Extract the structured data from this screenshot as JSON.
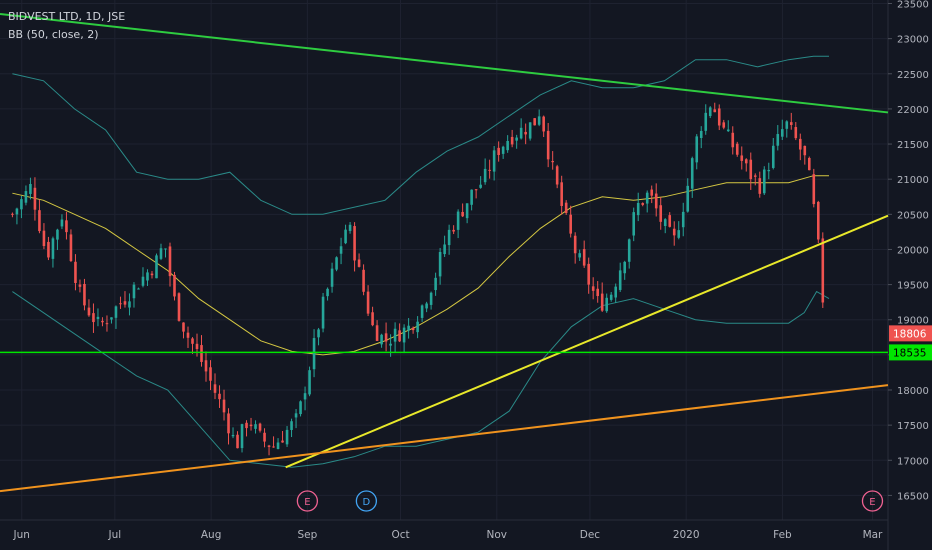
{
  "chart_data": {
    "type": "candlestick",
    "title": "BIDVEST LTD, 1D, JSE",
    "indicator_label": "BB (50, close, 2)",
    "x_ticks": [
      "Jun",
      "Jul",
      "Aug",
      "Sep",
      "Oct",
      "Nov",
      "Dec",
      "2020",
      "Feb",
      "Mar"
    ],
    "x_tick_days": [
      3,
      33,
      64,
      95,
      125,
      156,
      186,
      217,
      248,
      277
    ],
    "y_ticks": [
      16500,
      17000,
      17500,
      18000,
      18500,
      19000,
      19500,
      20000,
      20500,
      21000,
      21500,
      22000,
      22500,
      23000,
      23500
    ],
    "ylim": [
      16150,
      23550
    ],
    "xlim_days": [
      -4,
      282
    ],
    "last_price": {
      "label": "18806",
      "value": 18806,
      "color": "#ef5350"
    },
    "level_line": {
      "label": "18535",
      "value": 18535,
      "color": "#00e600"
    },
    "colors": {
      "up": "#26a69a",
      "down": "#ef5350",
      "grid": "#1e2230",
      "bb_basis": "#d4c742",
      "bb_band": "#2a8a88",
      "resistance": "#2ecc40",
      "support": "#e8e82a",
      "long_support": "#f0931e",
      "text": "#b2b5be"
    },
    "close_path": [
      [
        0,
        20500
      ],
      [
        6,
        20900
      ],
      [
        11,
        19900
      ],
      [
        16,
        20500
      ],
      [
        22,
        19300
      ],
      [
        28,
        18900
      ],
      [
        34,
        19200
      ],
      [
        40,
        19500
      ],
      [
        46,
        19800
      ],
      [
        49,
        20100
      ],
      [
        52,
        19300
      ],
      [
        56,
        18800
      ],
      [
        60,
        18500
      ],
      [
        64,
        18100
      ],
      [
        68,
        17700
      ],
      [
        72,
        17200
      ],
      [
        76,
        17600
      ],
      [
        80,
        17300
      ],
      [
        84,
        17200
      ],
      [
        88,
        17400
      ],
      [
        92,
        17600
      ],
      [
        96,
        18400
      ],
      [
        100,
        19200
      ],
      [
        104,
        19800
      ],
      [
        108,
        20400
      ],
      [
        112,
        19600
      ],
      [
        116,
        18900
      ],
      [
        120,
        18700
      ],
      [
        124,
        18800
      ],
      [
        128,
        18900
      ],
      [
        132,
        19200
      ],
      [
        136,
        19600
      ],
      [
        140,
        20200
      ],
      [
        144,
        20500
      ],
      [
        148,
        20800
      ],
      [
        152,
        21000
      ],
      [
        156,
        21400
      ],
      [
        160,
        21600
      ],
      [
        164,
        21700
      ],
      [
        168,
        21800
      ],
      [
        170,
        22000
      ],
      [
        173,
        21300
      ],
      [
        177,
        20600
      ],
      [
        181,
        20000
      ],
      [
        185,
        19600
      ],
      [
        189,
        19200
      ],
      [
        193,
        19400
      ],
      [
        197,
        19900
      ],
      [
        201,
        20600
      ],
      [
        205,
        20800
      ],
      [
        209,
        20400
      ],
      [
        213,
        20100
      ],
      [
        217,
        20800
      ],
      [
        221,
        21700
      ],
      [
        225,
        22100
      ],
      [
        229,
        21700
      ],
      [
        233,
        21400
      ],
      [
        237,
        21100
      ],
      [
        241,
        20900
      ],
      [
        245,
        21400
      ],
      [
        249,
        21800
      ],
      [
        253,
        21500
      ],
      [
        256,
        21200
      ],
      [
        259,
        20300
      ],
      [
        261,
        19300
      ],
      [
        262,
        18806
      ]
    ],
    "bb_basis": [
      [
        0,
        20800
      ],
      [
        10,
        20700
      ],
      [
        20,
        20500
      ],
      [
        30,
        20300
      ],
      [
        40,
        20000
      ],
      [
        50,
        19700
      ],
      [
        60,
        19300
      ],
      [
        70,
        19000
      ],
      [
        80,
        18700
      ],
      [
        90,
        18550
      ],
      [
        100,
        18500
      ],
      [
        110,
        18550
      ],
      [
        120,
        18700
      ],
      [
        130,
        18900
      ],
      [
        140,
        19150
      ],
      [
        150,
        19450
      ],
      [
        160,
        19900
      ],
      [
        170,
        20300
      ],
      [
        180,
        20600
      ],
      [
        190,
        20750
      ],
      [
        200,
        20700
      ],
      [
        210,
        20750
      ],
      [
        220,
        20850
      ],
      [
        230,
        20950
      ],
      [
        240,
        20950
      ],
      [
        250,
        20950
      ],
      [
        258,
        21050
      ],
      [
        263,
        21050
      ]
    ],
    "bb_upper": [
      [
        0,
        22500
      ],
      [
        10,
        22400
      ],
      [
        20,
        22000
      ],
      [
        30,
        21700
      ],
      [
        40,
        21100
      ],
      [
        50,
        21000
      ],
      [
        60,
        21000
      ],
      [
        70,
        21100
      ],
      [
        80,
        20700
      ],
      [
        90,
        20500
      ],
      [
        100,
        20500
      ],
      [
        110,
        20600
      ],
      [
        120,
        20700
      ],
      [
        130,
        21100
      ],
      [
        140,
        21400
      ],
      [
        150,
        21600
      ],
      [
        160,
        21900
      ],
      [
        170,
        22200
      ],
      [
        180,
        22400
      ],
      [
        190,
        22300
      ],
      [
        200,
        22300
      ],
      [
        210,
        22400
      ],
      [
        220,
        22700
      ],
      [
        230,
        22700
      ],
      [
        240,
        22600
      ],
      [
        250,
        22700
      ],
      [
        258,
        22750
      ],
      [
        263,
        22750
      ]
    ],
    "bb_lower": [
      [
        0,
        19400
      ],
      [
        10,
        19100
      ],
      [
        20,
        18800
      ],
      [
        30,
        18500
      ],
      [
        40,
        18200
      ],
      [
        50,
        18000
      ],
      [
        60,
        17500
      ],
      [
        70,
        17000
      ],
      [
        80,
        16950
      ],
      [
        90,
        16900
      ],
      [
        100,
        16950
      ],
      [
        110,
        17050
      ],
      [
        120,
        17200
      ],
      [
        130,
        17200
      ],
      [
        140,
        17300
      ],
      [
        150,
        17400
      ],
      [
        160,
        17700
      ],
      [
        170,
        18400
      ],
      [
        180,
        18900
      ],
      [
        190,
        19200
      ],
      [
        200,
        19300
      ],
      [
        210,
        19150
      ],
      [
        220,
        19000
      ],
      [
        230,
        18950
      ],
      [
        240,
        18950
      ],
      [
        250,
        18950
      ],
      [
        255,
        19100
      ],
      [
        259,
        19400
      ],
      [
        263,
        19300
      ]
    ],
    "trendlines": [
      {
        "name": "resistance",
        "from": [
          -4,
          23350
        ],
        "to": [
          282,
          21950
        ]
      },
      {
        "name": "support",
        "from": [
          88,
          16900
        ],
        "to": [
          282,
          20480
        ]
      },
      {
        "name": "long_support",
        "from": [
          -4,
          16560
        ],
        "to": [
          282,
          18070
        ]
      }
    ],
    "event_markers": [
      {
        "label": "E",
        "day": 95,
        "color": "#f06292"
      },
      {
        "label": "D",
        "day": 114,
        "color": "#42a5f5"
      },
      {
        "label": "E",
        "day": 277,
        "color": "#f06292"
      }
    ]
  }
}
